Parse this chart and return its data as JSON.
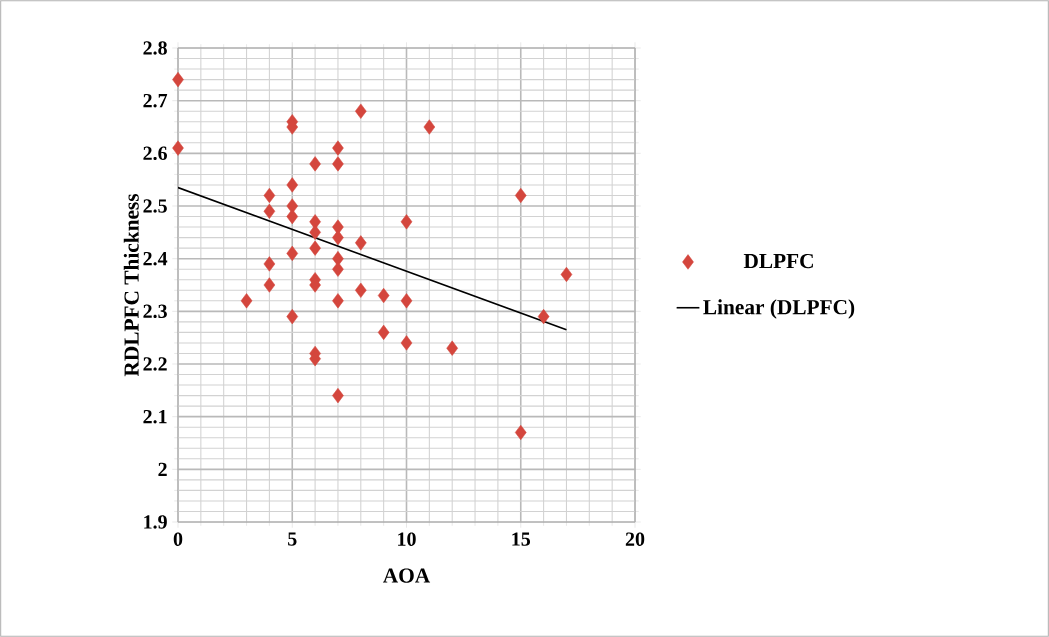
{
  "chart_data": {
    "type": "scatter",
    "xlabel": "AOA",
    "ylabel": "RDLPFC Thickness",
    "xlim": [
      0,
      20
    ],
    "ylim": [
      1.9,
      2.8
    ],
    "xticks": [
      0,
      5,
      10,
      15,
      20
    ],
    "yticks": [
      1.9,
      2,
      2.1,
      2.2,
      2.3,
      2.4,
      2.5,
      2.6,
      2.7,
      2.8
    ],
    "grid": true,
    "legend": "right",
    "marker": "diamond",
    "series": [
      {
        "name": "DLPFC",
        "color": "#d4463d",
        "x": [
          0,
          0,
          3,
          4,
          4,
          4,
          4,
          5,
          5,
          5,
          5,
          5,
          5,
          5,
          6,
          6,
          6,
          6,
          6,
          6,
          6,
          6,
          7,
          7,
          7,
          7,
          7,
          7,
          7,
          7,
          8,
          8,
          8,
          9,
          9,
          10,
          10,
          10,
          11,
          12,
          15,
          15,
          16,
          17
        ],
        "values": [
          2.74,
          2.61,
          2.32,
          2.52,
          2.49,
          2.39,
          2.35,
          2.66,
          2.65,
          2.54,
          2.5,
          2.48,
          2.41,
          2.29,
          2.58,
          2.47,
          2.45,
          2.42,
          2.36,
          2.35,
          2.22,
          2.21,
          2.61,
          2.58,
          2.46,
          2.44,
          2.4,
          2.38,
          2.32,
          2.14,
          2.68,
          2.43,
          2.34,
          2.33,
          2.26,
          2.47,
          2.32,
          2.24,
          2.65,
          2.23,
          2.52,
          2.07,
          2.29,
          2.37
        ]
      },
      {
        "name": "Linear (DLPFC)",
        "type": "line",
        "marker": "none",
        "color": "#000000",
        "x": [
          0,
          17
        ],
        "values": [
          2.535,
          2.265
        ]
      }
    ]
  }
}
